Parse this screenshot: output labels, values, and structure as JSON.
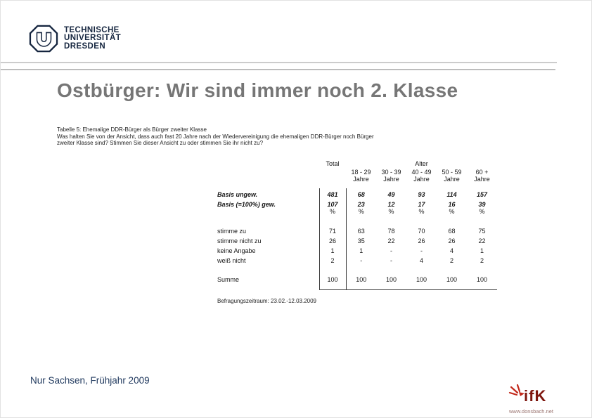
{
  "header": {
    "university_lines": [
      "TECHNISCHE",
      "UNIVERSITÄT",
      "DRESDEN"
    ]
  },
  "title": "Ostbürger: Wir sind immer noch 2. Klasse",
  "table": {
    "caption_lines": [
      "Tabelle 5: Ehemalige DDR-Bürger als Bürger zweiter Klasse",
      "Was halten Sie von der Ansicht, dass auch fast 20 Jahre nach der Wiedervereinigung die ehemaligen DDR-Bürger noch Bürger",
      "zweiter Klasse sind? Stimmen Sie dieser Ansicht zu oder stimmen Sie ihr nicht zu?"
    ],
    "header": {
      "total": "Total",
      "group": "Alter",
      "age_columns": [
        "18 - 29",
        "30 - 39",
        "40 - 49",
        "50 - 59",
        "60 +"
      ],
      "age_unit": "Jahre"
    },
    "rows": [
      {
        "label": "Basis ungew.",
        "kind": "basis",
        "values": [
          "481",
          "68",
          "49",
          "93",
          "114",
          "157"
        ]
      },
      {
        "label": "Basis (=100%) gew.",
        "kind": "basis",
        "values": [
          "107",
          "23",
          "12",
          "17",
          "16",
          "39"
        ]
      },
      {
        "label": "",
        "kind": "pct",
        "values": [
          "%",
          "%",
          "%",
          "%",
          "%",
          "%"
        ]
      },
      {
        "label": "stimme zu",
        "kind": "first",
        "values": [
          "71",
          "63",
          "78",
          "70",
          "68",
          "75"
        ]
      },
      {
        "label": "stimme nicht zu",
        "kind": "data",
        "values": [
          "26",
          "35",
          "22",
          "26",
          "26",
          "22"
        ]
      },
      {
        "label": "keine Angabe",
        "kind": "data",
        "values": [
          "1",
          "1",
          "-",
          "-",
          "4",
          "1"
        ]
      },
      {
        "label": "weiß nicht",
        "kind": "data",
        "values": [
          "2",
          "-",
          "-",
          "4",
          "2",
          "2"
        ]
      },
      {
        "label": "Summe",
        "kind": "sum",
        "values": [
          "100",
          "100",
          "100",
          "100",
          "100",
          "100"
        ]
      }
    ],
    "footnote": "Befragungszeitraum: 23.02.-12.03.2009"
  },
  "chart_data": {
    "type": "table",
    "title": "Tabelle 5: Ehemalige DDR-Bürger als Bürger zweiter Klasse",
    "columns": [
      "Total",
      "18 - 29 Jahre",
      "30 - 39 Jahre",
      "40 - 49 Jahre",
      "50 - 59 Jahre",
      "60 + Jahre"
    ],
    "rows": [
      {
        "label": "Basis ungew.",
        "values": [
          481,
          68,
          49,
          93,
          114,
          157
        ]
      },
      {
        "label": "Basis (=100%) gew.",
        "values": [
          107,
          23,
          12,
          17,
          16,
          39
        ]
      },
      {
        "label": "stimme zu (%)",
        "values": [
          71,
          63,
          78,
          70,
          68,
          75
        ]
      },
      {
        "label": "stimme nicht zu (%)",
        "values": [
          26,
          35,
          22,
          26,
          26,
          22
        ]
      },
      {
        "label": "keine Angabe (%)",
        "values": [
          1,
          1,
          null,
          null,
          4,
          1
        ]
      },
      {
        "label": "weiß nicht (%)",
        "values": [
          2,
          null,
          null,
          4,
          2,
          2
        ]
      },
      {
        "label": "Summe (%)",
        "values": [
          100,
          100,
          100,
          100,
          100,
          100
        ]
      }
    ]
  },
  "footer": {
    "left_text": "Nur Sachsen, Frühjahr 2009",
    "ifk_text": "ifK",
    "ifk_url": "www.donsbach.net"
  },
  "colors": {
    "title_gray": "#767676",
    "tud_navy": "#15253f",
    "footer_navy": "#20395e",
    "ifk_maroon": "#7d150d",
    "ifk_spark_red": "#c2281a",
    "table_line": "#3a3a3a"
  }
}
